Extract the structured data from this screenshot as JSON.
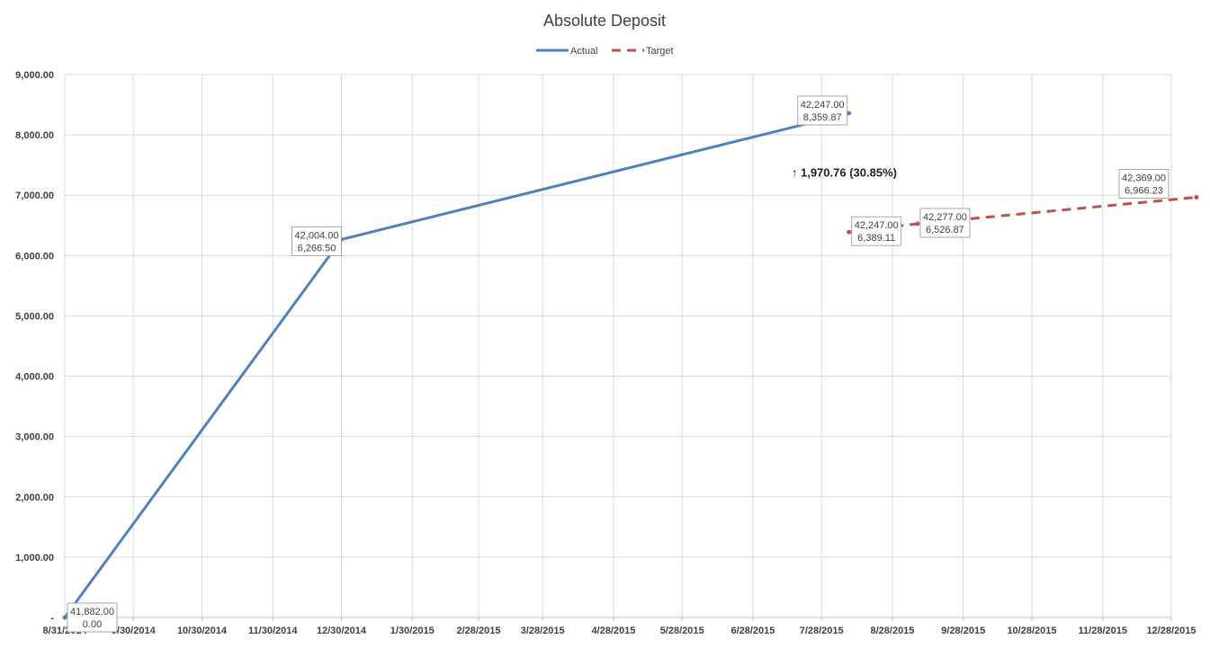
{
  "chart_data": {
    "type": "line",
    "title": "Absolute Deposit",
    "xlabel": "",
    "ylabel": "",
    "x_is_date": true,
    "xlim": [
      "2014-08-31",
      "2015-12-28"
    ],
    "ylim": [
      0,
      9000
    ],
    "grid": true,
    "legend_position": "top",
    "x_ticks": [
      "2014-08-31",
      "2014-09-30",
      "2014-10-30",
      "2014-11-30",
      "2014-12-30",
      "2015-01-30",
      "2015-02-28",
      "2015-03-28",
      "2015-04-28",
      "2015-05-28",
      "2015-06-28",
      "2015-07-28",
      "2015-08-28",
      "2015-09-28",
      "2015-10-28",
      "2015-11-28",
      "2015-12-28"
    ],
    "x_tick_labels": [
      "8/31/2014",
      "9/30/2014",
      "10/30/2014",
      "11/30/2014",
      "12/30/2014",
      "1/30/2015",
      "2/28/2015",
      "3/28/2015",
      "4/28/2015",
      "5/28/2015",
      "6/28/2015",
      "7/28/2015",
      "8/28/2015",
      "9/28/2015",
      "10/28/2015",
      "11/28/2015",
      "12/28/2015"
    ],
    "y_ticks": [
      0,
      1000,
      2000,
      3000,
      4000,
      5000,
      6000,
      7000,
      8000,
      9000
    ],
    "y_tick_labels": [
      "-",
      "1,000.00",
      "2,000.00",
      "3,000.00",
      "4,000.00",
      "5,000.00",
      "6,000.00",
      "7,000.00",
      "8,000.00",
      "9,000.00"
    ],
    "series": [
      {
        "name": "Actual",
        "color": "#4f81bd",
        "style": "solid",
        "points": [
          {
            "x": "2014-08-31",
            "y": 0,
            "label_top": "41,882.00",
            "label_bottom": "0.00"
          },
          {
            "x": "2014-12-30",
            "y": 6266.5,
            "label_top": "42,004.00",
            "label_bottom": "6,266.50"
          },
          {
            "x": "2015-08-09",
            "y": 8359.87,
            "label_top": "42,247.00",
            "label_bottom": "8,359.87"
          }
        ]
      },
      {
        "name": "Target",
        "color": "#c0504d",
        "style": "dashed",
        "points": [
          {
            "x": "2015-08-09",
            "y": 6389.11,
            "label_top": "42,247.00",
            "label_bottom": "6,389.11"
          },
          {
            "x": "2015-09-08",
            "y": 6526.87,
            "label_top": "42,277.00",
            "label_bottom": "6,526.87"
          },
          {
            "x": "2016-01-08",
            "y": 6966.23,
            "label_top": "42,369.00",
            "label_bottom": "6,966.23"
          }
        ]
      }
    ],
    "annotation": {
      "text": "↑ 1,970.76 (30.85%)",
      "x": "2015-08-03",
      "y": 7380
    }
  }
}
